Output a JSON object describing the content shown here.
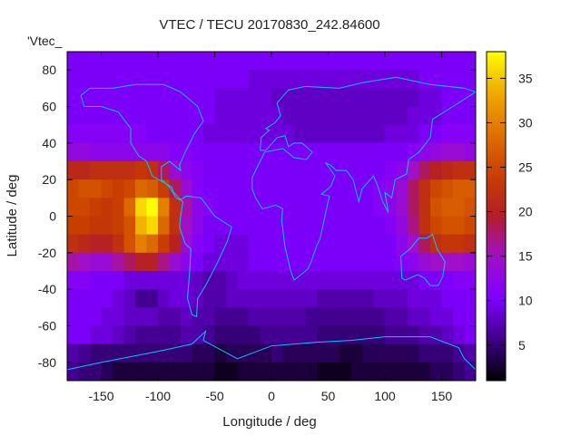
{
  "chart_data": {
    "type": "heatmap",
    "title": "VTEC / TECU 20170830_242.84600",
    "key_label": "'Vtec_",
    "xlabel": "Longitude / deg",
    "ylabel": "Latitude / deg",
    "xlim": [
      -180,
      180
    ],
    "ylim": [
      -90,
      90
    ],
    "xticks": [
      -150,
      -100,
      -50,
      0,
      50,
      100,
      150
    ],
    "yticks": [
      -80,
      -60,
      -40,
      -20,
      0,
      20,
      40,
      60,
      80
    ],
    "cbrange": [
      1,
      38
    ],
    "cbticks": [
      5,
      10,
      15,
      20,
      25,
      30,
      35
    ],
    "grid_lon_step": 10,
    "grid_lat_step": 10,
    "grid_lats": [
      85,
      75,
      65,
      55,
      45,
      35,
      25,
      15,
      5,
      -5,
      -15,
      -25,
      -35,
      -45,
      -55,
      -65,
      -75,
      -85
    ],
    "grid_lons": [
      -175,
      -165,
      -155,
      -145,
      -135,
      -125,
      -115,
      -105,
      -95,
      -85,
      -75,
      -65,
      -55,
      -45,
      -35,
      -25,
      -15,
      -5,
      5,
      15,
      25,
      35,
      45,
      55,
      65,
      75,
      85,
      95,
      105,
      115,
      125,
      135,
      145,
      155,
      165,
      175
    ],
    "values": [
      [
        10,
        10,
        10,
        10,
        10,
        10,
        10,
        10,
        10,
        10,
        10,
        10,
        10,
        10,
        10,
        10,
        10,
        10,
        10,
        10,
        10,
        10,
        10,
        10,
        10,
        10,
        10,
        10,
        10,
        10,
        10,
        10,
        10,
        10,
        10,
        10
      ],
      [
        10,
        10,
        10,
        10,
        10,
        10,
        10,
        10,
        10,
        10,
        10,
        10,
        10,
        10,
        10,
        10,
        9,
        9,
        9,
        9,
        9,
        9,
        9,
        9,
        9,
        9,
        9,
        9,
        9,
        9,
        9,
        10,
        10,
        10,
        10,
        10
      ],
      [
        10,
        10,
        10,
        10,
        10,
        10,
        10,
        10,
        10,
        10,
        10,
        10,
        10,
        9,
        9,
        9,
        9,
        9,
        8,
        8,
        8,
        8,
        8,
        8,
        8,
        8,
        8,
        8,
        8,
        8,
        8,
        9,
        9,
        10,
        10,
        10
      ],
      [
        10,
        10,
        10,
        10,
        10,
        10,
        10,
        10,
        10,
        10,
        10,
        10,
        10,
        9,
        9,
        9,
        9,
        9,
        9,
        8,
        8,
        8,
        8,
        8,
        8,
        8,
        8,
        8,
        8,
        8,
        9,
        9,
        9,
        10,
        10,
        10
      ],
      [
        11,
        11,
        11,
        11,
        11,
        11,
        11,
        10,
        10,
        10,
        10,
        10,
        9,
        9,
        9,
        9,
        9,
        9,
        9,
        9,
        8,
        8,
        8,
        8,
        8,
        8,
        8,
        8,
        9,
        9,
        9,
        10,
        10,
        11,
        11,
        11
      ],
      [
        13,
        13,
        12,
        12,
        12,
        12,
        12,
        12,
        12,
        11,
        11,
        10,
        10,
        10,
        10,
        10,
        10,
        10,
        10,
        10,
        10,
        10,
        10,
        10,
        10,
        10,
        10,
        10,
        10,
        10,
        11,
        12,
        13,
        14,
        14,
        13
      ],
      [
        21,
        21,
        22,
        22,
        22,
        22,
        23,
        22,
        18,
        14,
        12,
        11,
        10,
        10,
        10,
        10,
        10,
        10,
        10,
        10,
        10,
        10,
        10,
        10,
        10,
        10,
        10,
        10,
        11,
        12,
        15,
        18,
        20,
        21,
        22,
        22
      ],
      [
        25,
        26,
        26,
        25,
        24,
        25,
        28,
        27,
        24,
        18,
        14,
        11,
        10,
        10,
        10,
        10,
        10,
        10,
        10,
        10,
        10,
        10,
        10,
        10,
        10,
        10,
        10,
        11,
        12,
        14,
        18,
        22,
        25,
        26,
        27,
        27
      ],
      [
        25,
        25,
        24,
        23,
        24,
        28,
        36,
        38,
        30,
        22,
        16,
        12,
        11,
        10,
        10,
        10,
        10,
        10,
        10,
        10,
        10,
        10,
        10,
        10,
        10,
        10,
        10,
        11,
        12,
        14,
        18,
        22,
        26,
        27,
        27,
        26
      ],
      [
        24,
        24,
        23,
        23,
        24,
        26,
        34,
        36,
        28,
        22,
        15,
        12,
        10,
        10,
        10,
        10,
        10,
        10,
        10,
        10,
        10,
        10,
        10,
        10,
        10,
        10,
        10,
        10,
        11,
        13,
        17,
        22,
        25,
        26,
        26,
        25
      ],
      [
        22,
        21,
        20,
        20,
        22,
        26,
        30,
        28,
        24,
        20,
        14,
        11,
        10,
        9,
        9,
        9,
        10,
        10,
        10,
        10,
        10,
        10,
        10,
        10,
        10,
        10,
        10,
        10,
        10,
        12,
        15,
        18,
        22,
        23,
        23,
        22
      ],
      [
        16,
        15,
        14,
        14,
        16,
        18,
        20,
        20,
        17,
        14,
        12,
        10,
        9,
        9,
        9,
        9,
        10,
        10,
        10,
        10,
        10,
        10,
        10,
        10,
        10,
        10,
        10,
        10,
        10,
        11,
        12,
        14,
        15,
        15,
        15,
        14
      ],
      [
        11,
        11,
        10,
        10,
        10,
        9,
        9,
        9,
        9,
        9,
        9,
        8,
        7,
        7,
        8,
        9,
        9,
        9,
        9,
        9,
        9,
        9,
        9,
        9,
        9,
        9,
        9,
        9,
        9,
        9,
        9,
        10,
        10,
        10,
        11,
        11
      ],
      [
        10,
        10,
        10,
        10,
        9,
        8,
        6,
        6,
        8,
        9,
        9,
        8,
        7,
        7,
        8,
        8,
        8,
        8,
        8,
        8,
        8,
        8,
        7,
        7,
        7,
        7,
        7,
        8,
        8,
        8,
        9,
        9,
        9,
        10,
        10,
        10
      ],
      [
        10,
        10,
        10,
        9,
        9,
        8,
        8,
        8,
        7,
        7,
        8,
        7,
        7,
        6,
        6,
        6,
        7,
        7,
        7,
        7,
        7,
        6,
        6,
        6,
        6,
        6,
        6,
        6,
        7,
        7,
        8,
        8,
        9,
        9,
        10,
        10
      ],
      [
        10,
        10,
        9,
        9,
        8,
        7,
        6,
        6,
        6,
        6,
        7,
        7,
        6,
        5,
        5,
        5,
        5,
        6,
        6,
        6,
        6,
        6,
        5,
        5,
        5,
        5,
        5,
        5,
        6,
        6,
        6,
        7,
        7,
        8,
        9,
        10
      ],
      [
        7,
        6,
        5,
        5,
        5,
        5,
        5,
        5,
        5,
        5,
        5,
        4,
        4,
        3,
        4,
        4,
        4,
        4,
        5,
        4,
        4,
        4,
        4,
        4,
        3,
        3,
        4,
        4,
        4,
        4,
        4,
        5,
        5,
        5,
        6,
        7
      ],
      [
        6,
        5,
        5,
        4,
        3,
        3,
        3,
        3,
        3,
        3,
        3,
        3,
        3,
        2,
        2,
        3,
        3,
        3,
        3,
        3,
        3,
        3,
        2,
        2,
        2,
        3,
        3,
        3,
        3,
        3,
        3,
        3,
        4,
        4,
        5,
        6
      ]
    ],
    "coastlines": [
      [
        [
          -168,
          66
        ],
        [
          -160,
          70
        ],
        [
          -140,
          70
        ],
        [
          -120,
          72
        ],
        [
          -95,
          72
        ],
        [
          -80,
          68
        ],
        [
          -65,
          60
        ],
        [
          -60,
          52
        ],
        [
          -68,
          45
        ],
        [
          -76,
          35
        ],
        [
          -81,
          28
        ],
        [
          -80,
          25
        ],
        [
          -90,
          30
        ],
        [
          -97,
          27
        ],
        [
          -97,
          20
        ],
        [
          -90,
          16
        ],
        [
          -84,
          10
        ],
        [
          -78,
          8
        ],
        [
          -80,
          0
        ],
        [
          -81,
          -6
        ],
        [
          -76,
          -15
        ],
        [
          -71,
          -18
        ],
        [
          -72,
          -30
        ],
        [
          -74,
          -45
        ],
        [
          -70,
          -54
        ],
        [
          -66,
          -55
        ],
        [
          -65,
          -45
        ],
        [
          -58,
          -38
        ],
        [
          -48,
          -26
        ],
        [
          -39,
          -14
        ],
        [
          -35,
          -6
        ],
        [
          -50,
          0
        ],
        [
          -62,
          10
        ],
        [
          -75,
          11
        ],
        [
          -80,
          9
        ],
        [
          -86,
          13
        ],
        [
          -88,
          16
        ],
        [
          -105,
          22
        ],
        [
          -110,
          30
        ],
        [
          -117,
          33
        ],
        [
          -124,
          40
        ],
        [
          -124,
          48
        ],
        [
          -135,
          57
        ],
        [
          -150,
          60
        ],
        [
          -165,
          60
        ],
        [
          -168,
          66
        ]
      ],
      [
        [
          -10,
          36
        ],
        [
          -9,
          43
        ],
        [
          -2,
          47
        ],
        [
          -5,
          48
        ],
        [
          3,
          51
        ],
        [
          8,
          55
        ],
        [
          5,
          62
        ],
        [
          15,
          69
        ],
        [
          30,
          71
        ],
        [
          60,
          70
        ],
        [
          80,
          73
        ],
        [
          110,
          76
        ],
        [
          140,
          72
        ],
        [
          170,
          70
        ],
        [
          180,
          68
        ],
        [
          160,
          60
        ],
        [
          142,
          53
        ],
        [
          140,
          43
        ],
        [
          130,
          35
        ],
        [
          121,
          31
        ],
        [
          119,
          23
        ],
        [
          109,
          20
        ],
        [
          106,
          10
        ],
        [
          100,
          13
        ],
        [
          103,
          2
        ],
        [
          98,
          8
        ],
        [
          94,
          16
        ],
        [
          90,
          22
        ],
        [
          80,
          15
        ],
        [
          77,
          8
        ],
        [
          72,
          20
        ],
        [
          66,
          25
        ],
        [
          57,
          25
        ],
        [
          52,
          28
        ],
        [
          48,
          29
        ],
        [
          56,
          22
        ],
        [
          52,
          16
        ],
        [
          44,
          12
        ],
        [
          51,
          11
        ],
        [
          43,
          -12
        ],
        [
          40,
          -16
        ],
        [
          35,
          -25
        ],
        [
          32,
          -29
        ],
        [
          20,
          -35
        ],
        [
          17,
          -30
        ],
        [
          12,
          -17
        ],
        [
          9,
          -2
        ],
        [
          10,
          4
        ],
        [
          4,
          6
        ],
        [
          -8,
          4
        ],
        [
          -14,
          10
        ],
        [
          -17,
          15
        ],
        [
          -17,
          21
        ],
        [
          -10,
          30
        ],
        [
          -6,
          35
        ],
        [
          10,
          37
        ],
        [
          20,
          32
        ],
        [
          31,
          31
        ],
        [
          36,
          35
        ],
        [
          27,
          40
        ],
        [
          20,
          40
        ],
        [
          15,
          38
        ],
        [
          12,
          44
        ],
        [
          5,
          43
        ],
        [
          -5,
          36
        ],
        [
          -10,
          36
        ]
      ],
      [
        [
          114,
          -22
        ],
        [
          122,
          -18
        ],
        [
          130,
          -12
        ],
        [
          137,
          -12
        ],
        [
          142,
          -10
        ],
        [
          146,
          -18
        ],
        [
          153,
          -25
        ],
        [
          151,
          -33
        ],
        [
          147,
          -38
        ],
        [
          140,
          -38
        ],
        [
          135,
          -34
        ],
        [
          129,
          -32
        ],
        [
          118,
          -35
        ],
        [
          115,
          -34
        ],
        [
          114,
          -22
        ]
      ],
      [
        [
          -180,
          -84
        ],
        [
          -150,
          -80
        ],
        [
          -100,
          -74
        ],
        [
          -70,
          -70
        ],
        [
          -58,
          -63
        ],
        [
          -60,
          -68
        ],
        [
          -30,
          -78
        ],
        [
          0,
          -71
        ],
        [
          40,
          -69
        ],
        [
          70,
          -68
        ],
        [
          100,
          -66
        ],
        [
          140,
          -66
        ],
        [
          165,
          -72
        ],
        [
          170,
          -78
        ],
        [
          180,
          -84
        ]
      ]
    ]
  }
}
